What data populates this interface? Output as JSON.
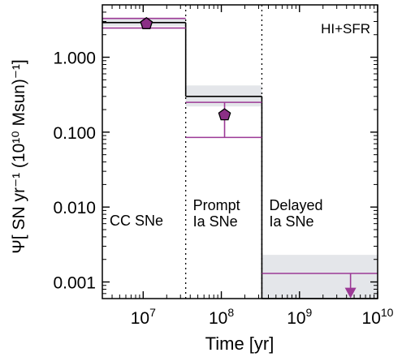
{
  "chart_data": {
    "type": "step",
    "title": "",
    "annotation": "HI+SFR",
    "xlabel": "Time [yr]",
    "ylabel": "Ψ[ SN yr⁻¹ (10¹⁰ Msun)⁻¹]",
    "xscale": "log",
    "yscale": "log",
    "xlim": [
      3000000,
      10000000000
    ],
    "ylim": [
      0.0006,
      5
    ],
    "xticks": [
      {
        "value": 10000000,
        "base": "10",
        "exp": "7"
      },
      {
        "value": 100000000,
        "base": "10",
        "exp": "8"
      },
      {
        "value": 1000000000,
        "base": "10",
        "exp": "9"
      },
      {
        "value": 10000000000,
        "base": "10",
        "exp": "10"
      }
    ],
    "yticks": [
      {
        "value": 1,
        "label": "1.000"
      },
      {
        "value": 0.1,
        "label": "0.100"
      },
      {
        "value": 0.01,
        "label": "0.010"
      },
      {
        "value": 0.001,
        "label": "0.001"
      }
    ],
    "bin_edges": [
      3000000,
      35000000,
      330000000,
      10000000000
    ],
    "bins": [
      {
        "x0": 3000000,
        "x1": 35000000,
        "value": 2.9,
        "band": [
          2.6,
          3.3
        ],
        "label": [
          "CC SNe"
        ]
      },
      {
        "x0": 35000000,
        "x1": 330000000,
        "value": 0.3,
        "band": [
          0.22,
          0.42
        ],
        "label": [
          "Prompt",
          "Ia SNe"
        ]
      },
      {
        "x0": 330000000,
        "x1": 10000000000,
        "value": 0.0006,
        "band": [
          0.0006,
          0.0023
        ],
        "label": [
          "Delayed",
          "Ia SNe"
        ]
      }
    ],
    "series": [
      {
        "name": "",
        "color": "#9c3a96",
        "marker": "pentagon",
        "marker_color": "#8b2f86",
        "points": [
          {
            "x": 11000000,
            "y": 2.8,
            "lo": 2.45,
            "hi": 3.3,
            "x0": 3000000,
            "x1": 35000000
          },
          {
            "x": 110000000,
            "y": 0.17,
            "lo": 0.085,
            "hi": 0.25,
            "x0": 35000000,
            "x1": 330000000
          },
          {
            "x": 4500000000,
            "y": 0.0013,
            "upper_limit": true,
            "arrow_to": 0.00062,
            "x0": 330000000,
            "x1": 10000000000
          }
        ]
      }
    ],
    "colors": {
      "band": "#e4e6ea",
      "step": "#000000",
      "errors": "#9c3a96",
      "marker": "#8b2f86"
    },
    "grid": false,
    "legend": "none"
  }
}
